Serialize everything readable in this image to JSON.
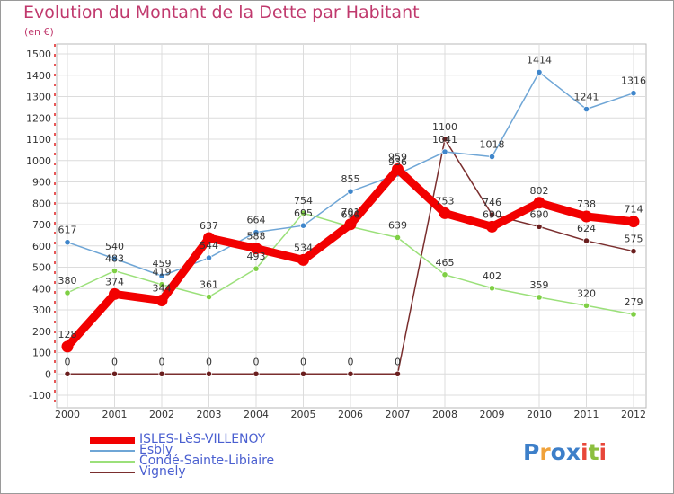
{
  "title": "Evolution du Montant de la Dette par Habitant",
  "subtitle": "(en €)",
  "logo": {
    "text": "Proxiti",
    "letters": [
      {
        "ch": "P",
        "color": "#3d7fc9"
      },
      {
        "ch": "r",
        "color": "#f0a23a"
      },
      {
        "ch": "o",
        "color": "#3d7fc9"
      },
      {
        "ch": "x",
        "color": "#3d7fc9"
      },
      {
        "ch": "i",
        "color": "#e8473a"
      },
      {
        "ch": "t",
        "color": "#8cbf3f"
      },
      {
        "ch": "i",
        "color": "#e8473a"
      }
    ]
  },
  "chart_data": {
    "type": "line",
    "title": "Evolution du Montant de la Dette par Habitant",
    "subtitle": "(en €)",
    "categories": [
      "2000",
      "2001",
      "2002",
      "2003",
      "2004",
      "2005",
      "2006",
      "2007",
      "2008",
      "2009",
      "2010",
      "2011",
      "2012"
    ],
    "ylim": [
      -100,
      1500
    ],
    "yticks": [
      -100,
      0,
      100,
      200,
      300,
      400,
      500,
      600,
      700,
      800,
      900,
      1000,
      1100,
      1200,
      1300,
      1400,
      1500
    ],
    "grid": true,
    "legend_position": "bottom-left",
    "series": [
      {
        "name": "ISLES-LèS-VILLENOY",
        "color": "#f20000",
        "values": [
          128,
          374,
          344,
          637,
          588,
          534,
          701,
          959,
          753,
          690,
          802,
          738,
          714
        ],
        "labels": [
          "128",
          "374",
          "344",
          "637",
          "588",
          "534",
          "701",
          "959",
          "753",
          "690",
          "802",
          "738",
          "714"
        ]
      },
      {
        "name": "Esbly",
        "color": "#6fa6d6",
        "values": [
          617,
          540,
          459,
          544,
          664,
          695,
          855,
          936,
          1041,
          1018,
          1414,
          1241,
          1316
        ],
        "labels": [
          "617",
          "540",
          "459",
          "544",
          "664",
          "695",
          "855",
          "936",
          "1041",
          "1018",
          "1414",
          "1241",
          "1316"
        ]
      },
      {
        "name": "Condé-Sainte-Libiaire",
        "color": "#9be07a",
        "values": [
          380,
          483,
          419,
          361,
          493,
          754,
          690,
          639,
          465,
          402,
          359,
          320,
          279
        ],
        "labels": [
          "380",
          "483",
          "419",
          "361",
          "493",
          "754",
          "690",
          "639",
          "465",
          "402",
          "359",
          "320",
          "279"
        ]
      },
      {
        "name": "Vignely",
        "color": "#7a2e2e",
        "values": [
          0,
          0,
          0,
          0,
          0,
          0,
          0,
          0,
          1100,
          746,
          690,
          624,
          575
        ],
        "labels": [
          "0",
          "0",
          "0",
          "0",
          "0",
          "0",
          "0",
          "0",
          "1100",
          "746",
          "690",
          "624",
          "575"
        ]
      }
    ]
  }
}
